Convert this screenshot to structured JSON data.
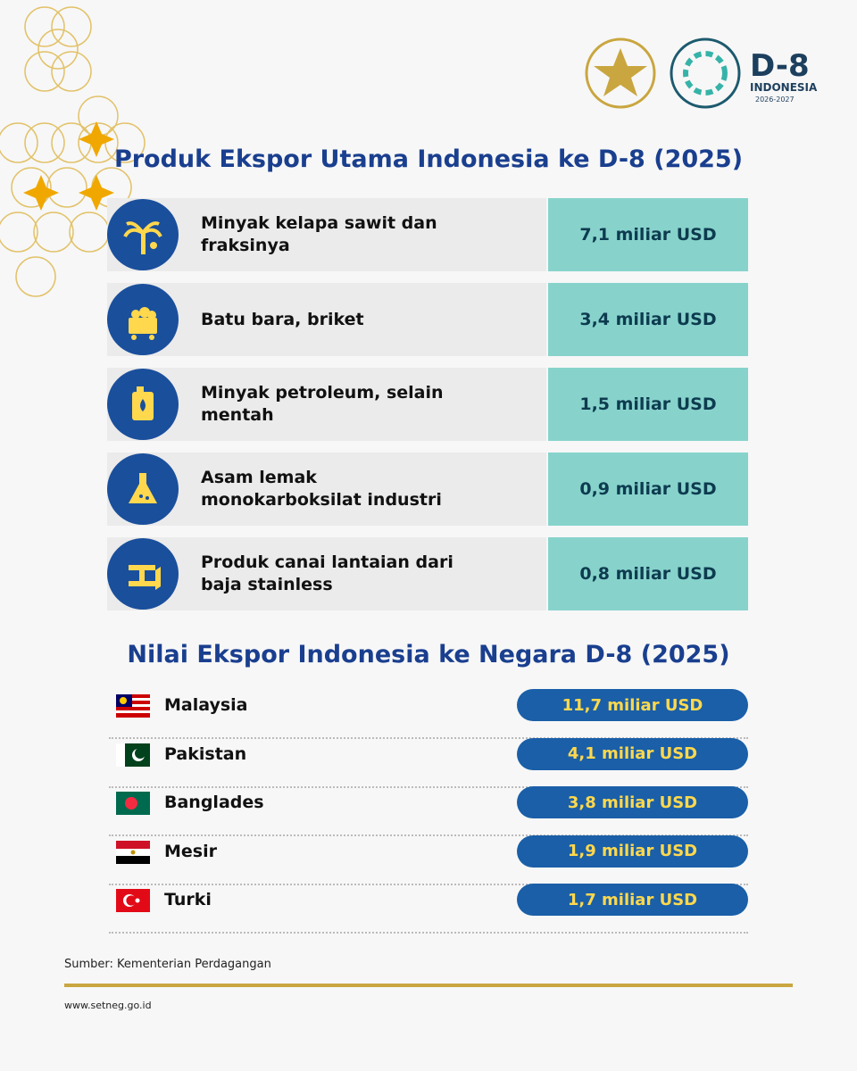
{
  "logo": {
    "name": "D-8",
    "country": "INDONESIA",
    "years": "2026-2027"
  },
  "products": {
    "title": "Produk Ekspor Utama Indonesia ke D-8 (2025)",
    "rows": [
      {
        "label": "Minyak kelapa sawit dan fraksinya",
        "value": "7,1 miliar USD"
      },
      {
        "label": "Batu bara, briket",
        "value": "3,4 miliar USD"
      },
      {
        "label": "Minyak petroleum, selain mentah",
        "value": "1,5 miliar USD"
      },
      {
        "label": "Asam lemak monokarboksilat industri",
        "value": "0,9 miliar USD"
      },
      {
        "label": "Produk canai lantaian dari baja stainless",
        "value": "0,8 miliar USD"
      }
    ]
  },
  "countries": {
    "title": "Nilai Ekspor Indonesia ke Negara D-8 (2025)",
    "rows": [
      {
        "name": "Malaysia",
        "value": "11,7 miliar USD"
      },
      {
        "name": "Pakistan",
        "value": "4,1 miliar USD"
      },
      {
        "name": "Banglades",
        "value": "3,8 miliar USD"
      },
      {
        "name": "Mesir",
        "value": "1,9 miliar USD"
      },
      {
        "name": "Turki",
        "value": "1,7 miliar USD"
      }
    ]
  },
  "footer": {
    "source": "Sumber: Kementerian Perdagangan",
    "website": "www.setneg.go.id"
  }
}
